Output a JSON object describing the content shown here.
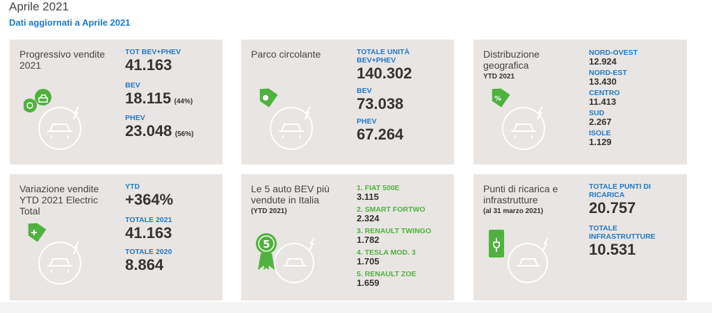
{
  "header": {
    "title": "Aprile 2021",
    "subtitle": "Dati aggiornati a Aprile 2021"
  },
  "icons": {
    "card1": "car-charging-icon",
    "card2": "location-pin-tag-icon",
    "card3": "percent-tag-icon",
    "card4": "plus-tag-icon",
    "card5": "rank-five-badge-icon",
    "card6": "charging-station-plug-icon"
  },
  "colors": {
    "accent_blue": "#1f79c6",
    "accent_green": "#4fb23e",
    "card_bg": "#e9e5e3"
  },
  "card1": {
    "title": "Progressivo vendite 2021",
    "tot_label": "TOT BEV+PHEV",
    "tot_value": "41.163",
    "bev_label": "BEV",
    "bev_value": "18.115",
    "bev_pct": "(44%)",
    "phev_label": "PHEV",
    "phev_value": "23.048",
    "phev_pct": "(56%)"
  },
  "card2": {
    "title": "Parco circolante",
    "tot_label": "TOTALE UNITÀ BEV+PHEV",
    "tot_value": "140.302",
    "bev_label": "BEV",
    "bev_value": "73.038",
    "phev_label": "PHEV",
    "phev_value": "67.264"
  },
  "card3": {
    "title": "Distribuzione geografica",
    "subtitle": "YTD 2021",
    "regions": [
      {
        "label": "NORD-OVEST",
        "value": "12.924"
      },
      {
        "label": "NORD-EST",
        "value": "13.430"
      },
      {
        "label": "CENTRO",
        "value": "11.413"
      },
      {
        "label": "SUD",
        "value": "2.267"
      },
      {
        "label": "ISOLE",
        "value": "1.129"
      }
    ]
  },
  "card4": {
    "title": "Variazione vendite YTD 2021 Electric Total",
    "ytd_label": "YTD",
    "ytd_value": "+364%",
    "t2021_label": "TOTALE 2021",
    "t2021_value": "41.163",
    "t2020_label": "TOTALE 2020",
    "t2020_value": "8.864"
  },
  "card5": {
    "title": "Le 5 auto BEV più vendute in Italia",
    "subtitle": "(YTD 2021)",
    "badge": "5",
    "cars": [
      {
        "label": "1. FIAT 500E",
        "value": "3.115"
      },
      {
        "label": "2. SMART FORTWO",
        "value": "2.324"
      },
      {
        "label": "3. RENAULT TWINGO",
        "value": "1.782"
      },
      {
        "label": "4. TESLA MOD. 3",
        "value": "1.705"
      },
      {
        "label": "5. RENAULT ZOE",
        "value": "1.659"
      }
    ]
  },
  "card6": {
    "title": "Punti di ricarica e infrastrutture",
    "subtitle": "(al 31 marzo 2021)",
    "points_label": "TOTALE PUNTI DI RICARICA",
    "points_value": "20.757",
    "infra_label": "TOTALE INFRASTRUTTURE",
    "infra_value": "10.531"
  }
}
